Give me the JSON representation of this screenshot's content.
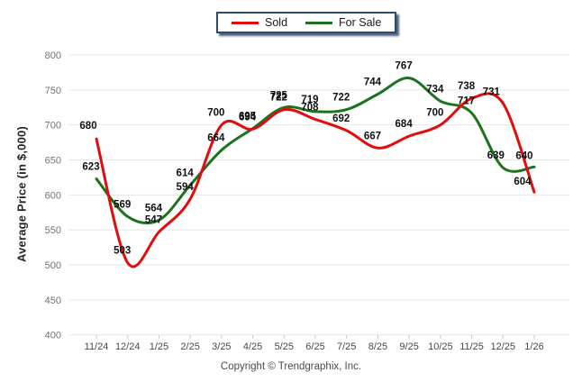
{
  "page": {
    "copyright": "Copyright © Trendgraphix, Inc."
  },
  "chart_data": {
    "type": "line",
    "smooth": true,
    "title": "",
    "xlabel": "",
    "ylabel": "Average Price (in $,000)",
    "ylim": [
      400,
      800
    ],
    "yticks": [
      800,
      750,
      700,
      650,
      600,
      550,
      500,
      450,
      400
    ],
    "grid": true,
    "legend_position": "top-center",
    "data_labels": true,
    "categories": [
      "11/24",
      "12/24",
      "1/25",
      "2/25",
      "3/25",
      "4/25",
      "5/25",
      "6/25",
      "7/25",
      "8/25",
      "9/25",
      "10/25",
      "11/25",
      "12/25",
      "1/26"
    ],
    "series": [
      {
        "name": "For Sale",
        "color": "#1d721d",
        "values": [
          623,
          569,
          564,
          614,
          664,
          695,
          725,
          719,
          722,
          744,
          767,
          734,
          717,
          639,
          640
        ]
      },
      {
        "name": "Sold",
        "color": "#e10c0c",
        "values": [
          680,
          503,
          547,
          594,
          700,
          694,
          722,
          708,
          692,
          667,
          684,
          700,
          738,
          731,
          604
        ]
      }
    ],
    "label_offset_overrides": {
      "0": {
        "13": [
          -8,
          -10
        ],
        "14": [
          -11,
          -9
        ]
      },
      "1": {
        "0": [
          -9,
          -11
        ],
        "13": [
          -13,
          -9
        ],
        "14": [
          -13,
          -8
        ]
      }
    }
  }
}
